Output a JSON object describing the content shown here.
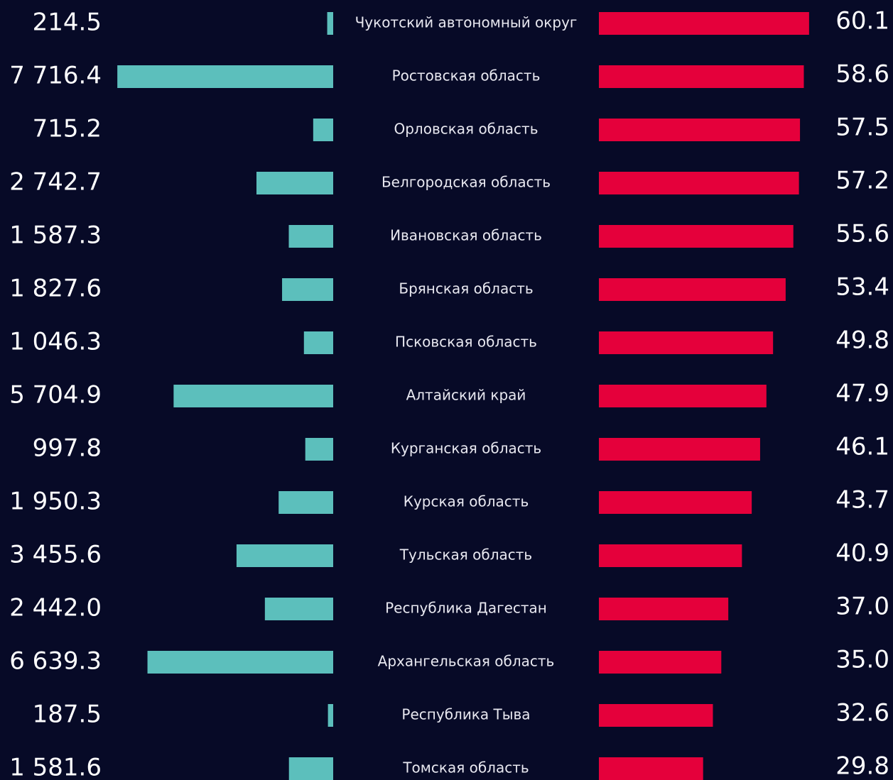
{
  "chart_data": {
    "type": "butterfly",
    "categories": [
      "Чукотский автономный округ",
      "Ростовская область",
      "Орловская область",
      "Белгородская область",
      "Ивановская область",
      "Брянская область",
      "Псковская область",
      "Алтайский край",
      "Курганская область",
      "Курская область",
      "Тульская область",
      "Республика Дагестан",
      "Архангельская область",
      "Республика Тыва",
      "Томская область"
    ],
    "series": [
      {
        "color": "#5cbfbc",
        "xlim": [
          0,
          8000
        ],
        "values": [
          214.5,
          7716.4,
          715.2,
          2742.7,
          1587.3,
          1827.6,
          1046.3,
          5704.9,
          997.8,
          1950.3,
          3455.6,
          2442.0,
          6639.3,
          187.5,
          1581.6
        ],
        "value_labels": [
          "214.5",
          "7 716.4",
          "715.2",
          "2 742.7",
          "1 587.3",
          "1 827.6",
          "1 046.3",
          "5 704.9",
          "997.8",
          "1 950.3",
          "3 455.6",
          "2 442.0",
          "6 639.3",
          "187.5",
          "1 581.6"
        ]
      },
      {
        "color": "#e5003b",
        "xlim": [
          0,
          65
        ],
        "values": [
          60.1,
          58.6,
          57.5,
          57.2,
          55.6,
          53.4,
          49.8,
          47.9,
          46.1,
          43.7,
          40.9,
          37.0,
          35.0,
          32.6,
          29.8
        ],
        "value_labels": [
          "60.1",
          "58.6",
          "57.5",
          "57.2",
          "55.6",
          "53.4",
          "49.8",
          "47.9",
          "46.1",
          "43.7",
          "40.9",
          "37.0",
          "35.0",
          "32.6",
          "29.8"
        ]
      }
    ]
  }
}
